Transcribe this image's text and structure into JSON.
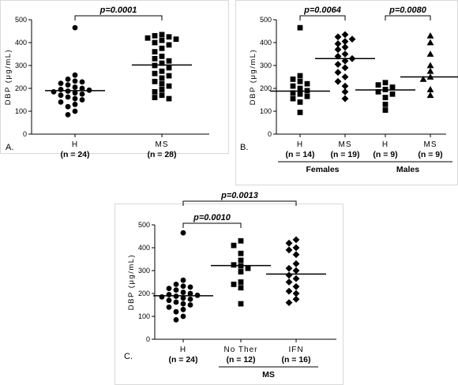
{
  "chart_data": [
    {
      "type": "scatter",
      "panel": "A.",
      "ylabel": "DBP (μg/mL)",
      "ylim": [
        0,
        500
      ],
      "yticks": [
        0,
        100,
        200,
        300,
        400,
        500
      ],
      "categories": [
        "H",
        "MS"
      ],
      "category_n": [
        "(n = 24)",
        "(n = 28)"
      ],
      "series": [
        {
          "category": "H",
          "marker": "circle",
          "median": 190,
          "values": [
            465,
            258,
            240,
            232,
            228,
            222,
            215,
            205,
            200,
            195,
            192,
            188,
            185,
            180,
            175,
            170,
            162,
            155,
            150,
            140,
            130,
            120,
            100,
            85
          ]
        },
        {
          "category": "MS",
          "marker": "square",
          "median": 302,
          "values": [
            435,
            430,
            425,
            420,
            415,
            410,
            400,
            390,
            375,
            360,
            340,
            330,
            320,
            310,
            300,
            290,
            275,
            265,
            255,
            245,
            230,
            220,
            210,
            195,
            185,
            170,
            160,
            155
          ]
        }
      ],
      "annotations": [
        {
          "between": [
            0,
            1
          ],
          "text": "p=0.0001"
        }
      ]
    },
    {
      "type": "scatter",
      "panel": "B.",
      "ylabel": "DBP (μg/mL)",
      "ylim": [
        0,
        500
      ],
      "yticks": [
        0,
        100,
        200,
        300,
        400,
        500
      ],
      "categories": [
        "H",
        "MS",
        "H",
        "MS"
      ],
      "category_n": [
        "(n = 14)",
        "(n = 19)",
        "(n = 9)",
        "(n = 9)"
      ],
      "groups": [
        {
          "label": "Females",
          "categories": [
            0,
            1
          ]
        },
        {
          "label": "Males",
          "categories": [
            2,
            3
          ]
        }
      ],
      "series": [
        {
          "category": 0,
          "marker": "square",
          "median": 188,
          "values": [
            465,
            255,
            240,
            230,
            220,
            210,
            200,
            190,
            180,
            175,
            165,
            155,
            140,
            95
          ]
        },
        {
          "category": 1,
          "marker": "diamond",
          "median": 330,
          "values": [
            435,
            425,
            415,
            405,
            395,
            380,
            370,
            350,
            340,
            330,
            320,
            305,
            290,
            270,
            250,
            230,
            210,
            185,
            155
          ]
        },
        {
          "category": 2,
          "marker": "square",
          "median": 193,
          "values": [
            225,
            215,
            205,
            195,
            185,
            175,
            160,
            130,
            105
          ]
        },
        {
          "category": 3,
          "marker": "triangle",
          "median": 250,
          "values": [
            430,
            400,
            350,
            300,
            275,
            250,
            240,
            195,
            170
          ]
        }
      ],
      "annotations": [
        {
          "between": [
            0,
            1
          ],
          "text": "p=0.0064"
        },
        {
          "between": [
            2,
            3
          ],
          "text": "p=0.0080"
        }
      ]
    },
    {
      "type": "scatter",
      "panel": "C.",
      "ylabel": "DBP (μg/mL)",
      "ylim": [
        0,
        500
      ],
      "yticks": [
        0,
        100,
        200,
        300,
        400,
        500
      ],
      "categories": [
        "H",
        "No Ther",
        "IFN"
      ],
      "category_n": [
        "(n = 24)",
        "(n = 12)",
        "(n = 16)"
      ],
      "groups": [
        {
          "label": "MS",
          "categories": [
            1,
            2
          ]
        }
      ],
      "series": [
        {
          "category": 0,
          "marker": "circle",
          "median": 190,
          "values": [
            465,
            258,
            240,
            232,
            228,
            222,
            215,
            205,
            200,
            195,
            192,
            188,
            185,
            180,
            175,
            170,
            162,
            155,
            150,
            140,
            130,
            120,
            100,
            85
          ]
        },
        {
          "category": 1,
          "marker": "square",
          "median": 322,
          "values": [
            430,
            410,
            375,
            345,
            325,
            320,
            310,
            295,
            250,
            240,
            225,
            155
          ]
        },
        {
          "category": 2,
          "marker": "diamond",
          "median": 285,
          "values": [
            435,
            420,
            400,
            390,
            370,
            330,
            310,
            300,
            280,
            265,
            250,
            230,
            210,
            200,
            175,
            160
          ]
        }
      ],
      "annotations": [
        {
          "between": [
            0,
            1
          ],
          "text": "p=0.0010"
        },
        {
          "between": [
            0,
            2
          ],
          "text": "p=0.0013"
        }
      ]
    }
  ]
}
